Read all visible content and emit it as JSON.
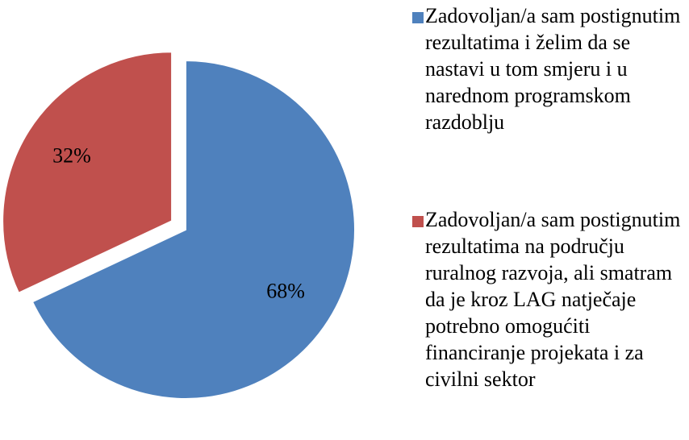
{
  "chart_data": {
    "type": "pie",
    "categories": [
      "Zadovoljan/a sam postignutim rezultatima i želim da se nastavi u tom smjeru i u narednom programskom razdoblju",
      "Zadovoljan/a sam postignutim rezultatima na području ruralnog razvoja, ali smatram da je kroz LAG natječaje potrebno omogućiti financiranje projekata i za civilni sektor"
    ],
    "values": [
      68,
      32
    ],
    "value_labels": [
      "68%",
      "32%"
    ],
    "colors": [
      "#4f81bd",
      "#c0504d"
    ],
    "exploded": [
      false,
      true
    ],
    "legend": "right"
  }
}
